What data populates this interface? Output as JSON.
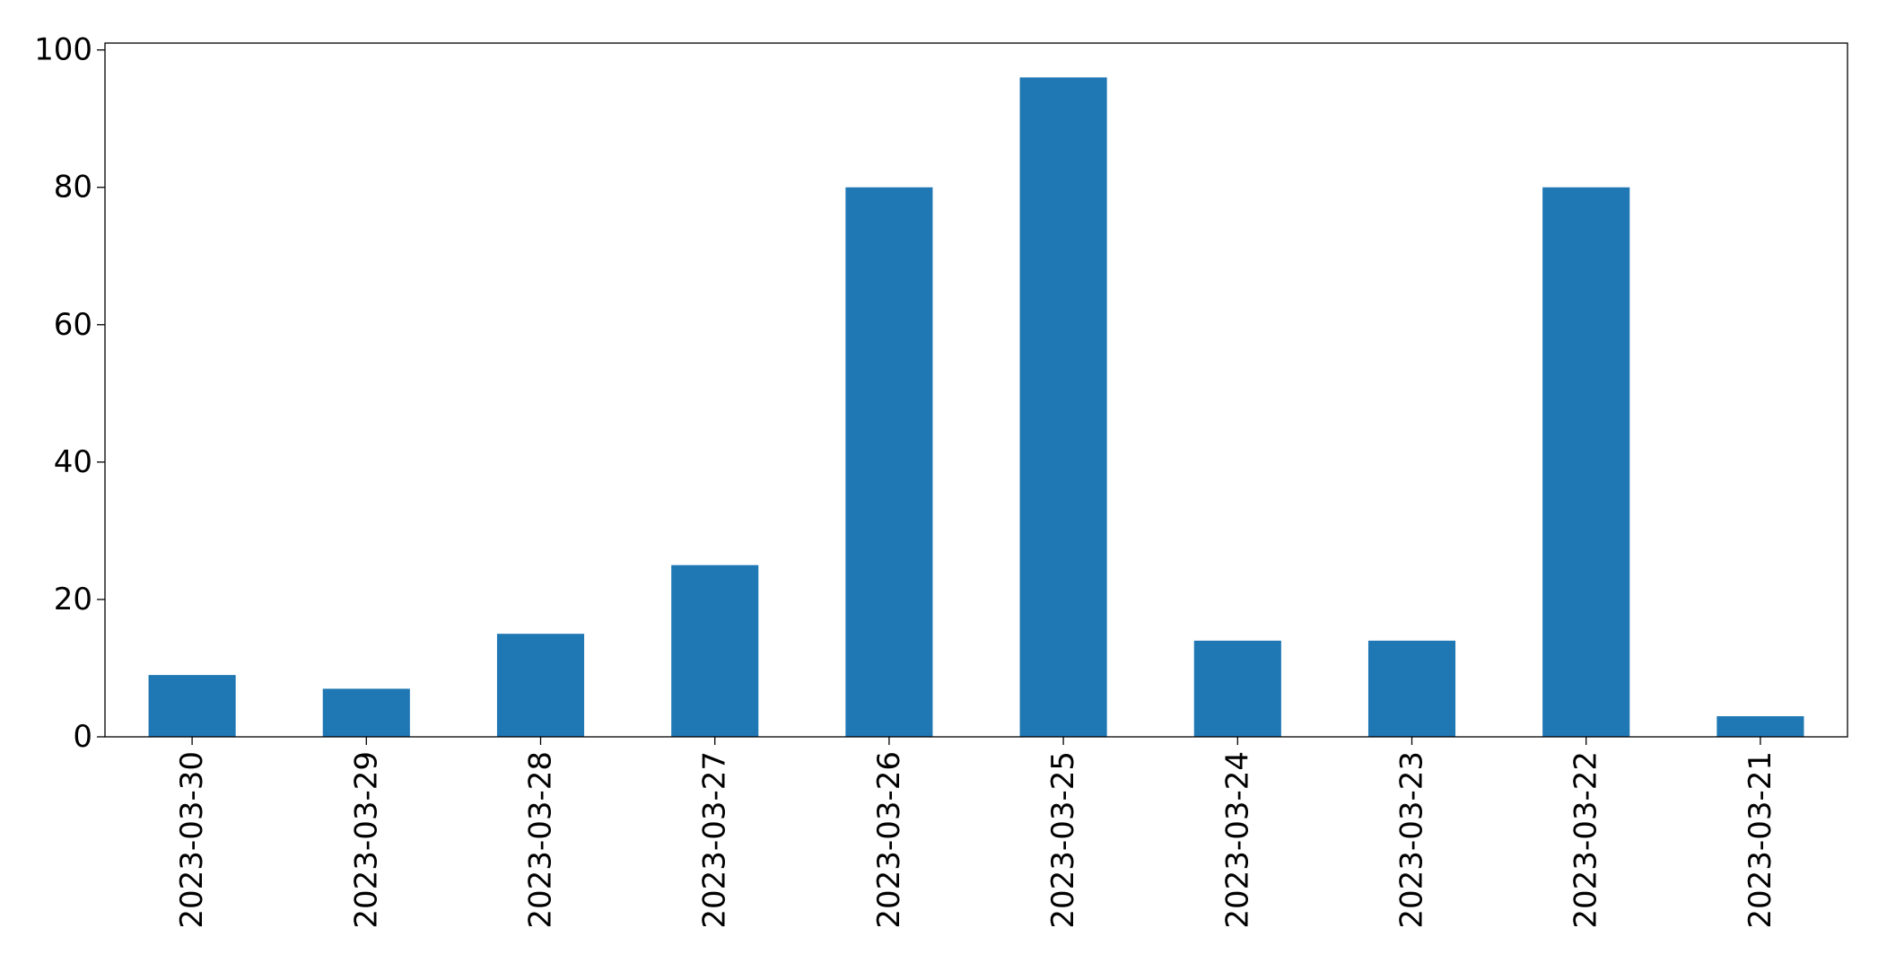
{
  "chart_data": {
    "type": "bar",
    "title": "",
    "xlabel": "",
    "ylabel": "",
    "categories": [
      "2023-03-30",
      "2023-03-29",
      "2023-03-28",
      "2023-03-27",
      "2023-03-26",
      "2023-03-25",
      "2023-03-24",
      "2023-03-23",
      "2023-03-22",
      "2023-03-21"
    ],
    "values": [
      9,
      7,
      15,
      25,
      80,
      96,
      14,
      14,
      80,
      3
    ],
    "ylim": [
      0,
      101
    ],
    "yticks": [
      0,
      20,
      40,
      60,
      80,
      100
    ],
    "grid": false,
    "legend": "none",
    "bar_color": "#1f77b4"
  }
}
